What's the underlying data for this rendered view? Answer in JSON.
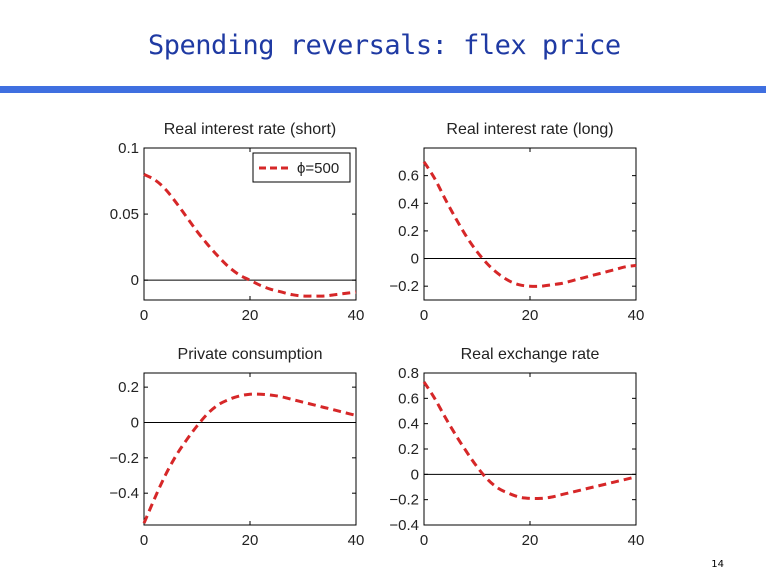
{
  "slide": {
    "title": "Spending reversals: flex price",
    "page_number": "14"
  },
  "colors": {
    "title": "#1f3aa3",
    "rule": "#3f6fe0",
    "series": "#d62728",
    "axis": "#000000"
  },
  "chart_data": [
    {
      "type": "line",
      "title": "Real interest rate (short)",
      "xlim": [
        0,
        40
      ],
      "ylim": [
        -0.015,
        0.1
      ],
      "xticks": [
        0,
        20,
        40
      ],
      "xtick_labels": [
        "0",
        "20",
        "40"
      ],
      "yticks": [
        0,
        0.05,
        0.1
      ],
      "ytick_labels": [
        "0",
        "0.05",
        "0.1"
      ],
      "zero_line": true,
      "legend": {
        "entries": [
          "ϕ=500"
        ],
        "position": "top-right"
      },
      "series": [
        {
          "name": "ϕ=500",
          "x": [
            0,
            2,
            4,
            6,
            8,
            10,
            12,
            14,
            16,
            18,
            20,
            22,
            24,
            26,
            28,
            30,
            32,
            34,
            36,
            38,
            40
          ],
          "y": [
            0.08,
            0.076,
            0.069,
            0.059,
            0.048,
            0.037,
            0.027,
            0.018,
            0.01,
            0.004,
            0.0,
            -0.004,
            -0.007,
            -0.009,
            -0.011,
            -0.012,
            -0.012,
            -0.012,
            -0.011,
            -0.01,
            -0.009
          ]
        }
      ]
    },
    {
      "type": "line",
      "title": "Real interest rate (long)",
      "xlim": [
        0,
        40
      ],
      "ylim": [
        -0.3,
        0.8
      ],
      "xticks": [
        0,
        20,
        40
      ],
      "xtick_labels": [
        "0",
        "20",
        "40"
      ],
      "yticks": [
        -0.2,
        0,
        0.2,
        0.4,
        0.6
      ],
      "ytick_labels": [
        "−0.2",
        "0",
        "0.2",
        "0.4",
        "0.6"
      ],
      "zero_line": true,
      "series": [
        {
          "name": "ϕ=500",
          "x": [
            0,
            2,
            4,
            6,
            8,
            10,
            12,
            14,
            16,
            18,
            20,
            22,
            24,
            26,
            28,
            30,
            32,
            34,
            36,
            38,
            40
          ],
          "y": [
            0.7,
            0.58,
            0.43,
            0.29,
            0.16,
            0.05,
            -0.04,
            -0.11,
            -0.16,
            -0.19,
            -0.2,
            -0.2,
            -0.19,
            -0.18,
            -0.16,
            -0.14,
            -0.12,
            -0.1,
            -0.08,
            -0.06,
            -0.05
          ]
        }
      ]
    },
    {
      "type": "line",
      "title": "Private consumption",
      "xlim": [
        0,
        40
      ],
      "ylim": [
        -0.58,
        0.28
      ],
      "xticks": [
        0,
        20,
        40
      ],
      "xtick_labels": [
        "0",
        "20",
        "40"
      ],
      "yticks": [
        -0.4,
        -0.2,
        0,
        0.2
      ],
      "ytick_labels": [
        "−0.4",
        "−0.2",
        "0",
        "0.2"
      ],
      "zero_line": true,
      "series": [
        {
          "name": "ϕ=500",
          "x": [
            0,
            2,
            4,
            6,
            8,
            10,
            12,
            14,
            16,
            18,
            20,
            22,
            24,
            26,
            28,
            30,
            32,
            34,
            36,
            38,
            40
          ],
          "y": [
            -0.57,
            -0.43,
            -0.3,
            -0.19,
            -0.1,
            -0.02,
            0.05,
            0.1,
            0.13,
            0.15,
            0.16,
            0.16,
            0.155,
            0.145,
            0.13,
            0.115,
            0.1,
            0.085,
            0.07,
            0.055,
            0.04
          ]
        }
      ]
    },
    {
      "type": "line",
      "title": "Real exchange rate",
      "xlim": [
        0,
        40
      ],
      "ylim": [
        -0.4,
        0.8
      ],
      "xticks": [
        0,
        20,
        40
      ],
      "xtick_labels": [
        "0",
        "20",
        "40"
      ],
      "yticks": [
        -0.4,
        -0.2,
        0,
        0.2,
        0.4,
        0.6,
        0.8
      ],
      "ytick_labels": [
        "−0.4",
        "−0.2",
        "0",
        "0.2",
        "0.4",
        "0.6",
        "0.8"
      ],
      "zero_line": true,
      "series": [
        {
          "name": "ϕ=500",
          "x": [
            0,
            2,
            4,
            6,
            8,
            10,
            12,
            14,
            16,
            18,
            20,
            22,
            24,
            26,
            28,
            30,
            32,
            34,
            36,
            38,
            40
          ],
          "y": [
            0.73,
            0.6,
            0.45,
            0.31,
            0.18,
            0.06,
            -0.04,
            -0.11,
            -0.15,
            -0.18,
            -0.19,
            -0.19,
            -0.18,
            -0.16,
            -0.14,
            -0.12,
            -0.1,
            -0.08,
            -0.06,
            -0.04,
            -0.02
          ]
        }
      ]
    }
  ]
}
